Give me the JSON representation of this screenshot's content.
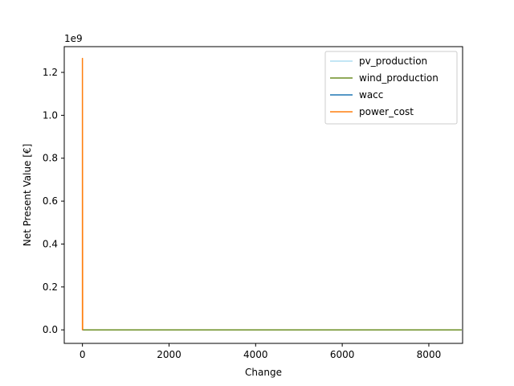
{
  "chart_data": {
    "type": "line",
    "xlabel": "Change",
    "ylabel": "Net Present Value [€]",
    "y_offset_label": "1e9",
    "xlim": [
      -420,
      8780
    ],
    "ylim": [
      -0.063,
      1.32
    ],
    "x_ticks": [
      0,
      2000,
      4000,
      6000,
      8000
    ],
    "x_tick_labels": [
      "0",
      "2000",
      "4000",
      "6000",
      "8000"
    ],
    "y_ticks": [
      0.0,
      0.2,
      0.4,
      0.6,
      0.8,
      1.0,
      1.2
    ],
    "y_tick_labels": [
      "0.0",
      "0.2",
      "0.4",
      "0.6",
      "0.8",
      "1.0",
      "1.2"
    ],
    "grid": false,
    "legend_position": "top-right",
    "series": [
      {
        "name": "pv_production",
        "color": "#87ceeb",
        "width": 1.0,
        "x": [
          0,
          8760
        ],
        "y": [
          0.0,
          0.0
        ]
      },
      {
        "name": "wind_production",
        "color": "#6b8e23",
        "width": 1.5,
        "x": [
          0,
          8760
        ],
        "y": [
          0.0,
          0.0
        ]
      },
      {
        "name": "wacc",
        "color": "#1f77b4",
        "width": 1.5,
        "x": [
          0,
          20
        ],
        "y": [
          0.0,
          0.0
        ]
      },
      {
        "name": "power_cost",
        "color": "#ff7f0e",
        "width": 1.5,
        "x": [
          0,
          0,
          5,
          10
        ],
        "y": [
          0.0,
          1.265,
          0.0,
          0.0
        ]
      }
    ]
  }
}
